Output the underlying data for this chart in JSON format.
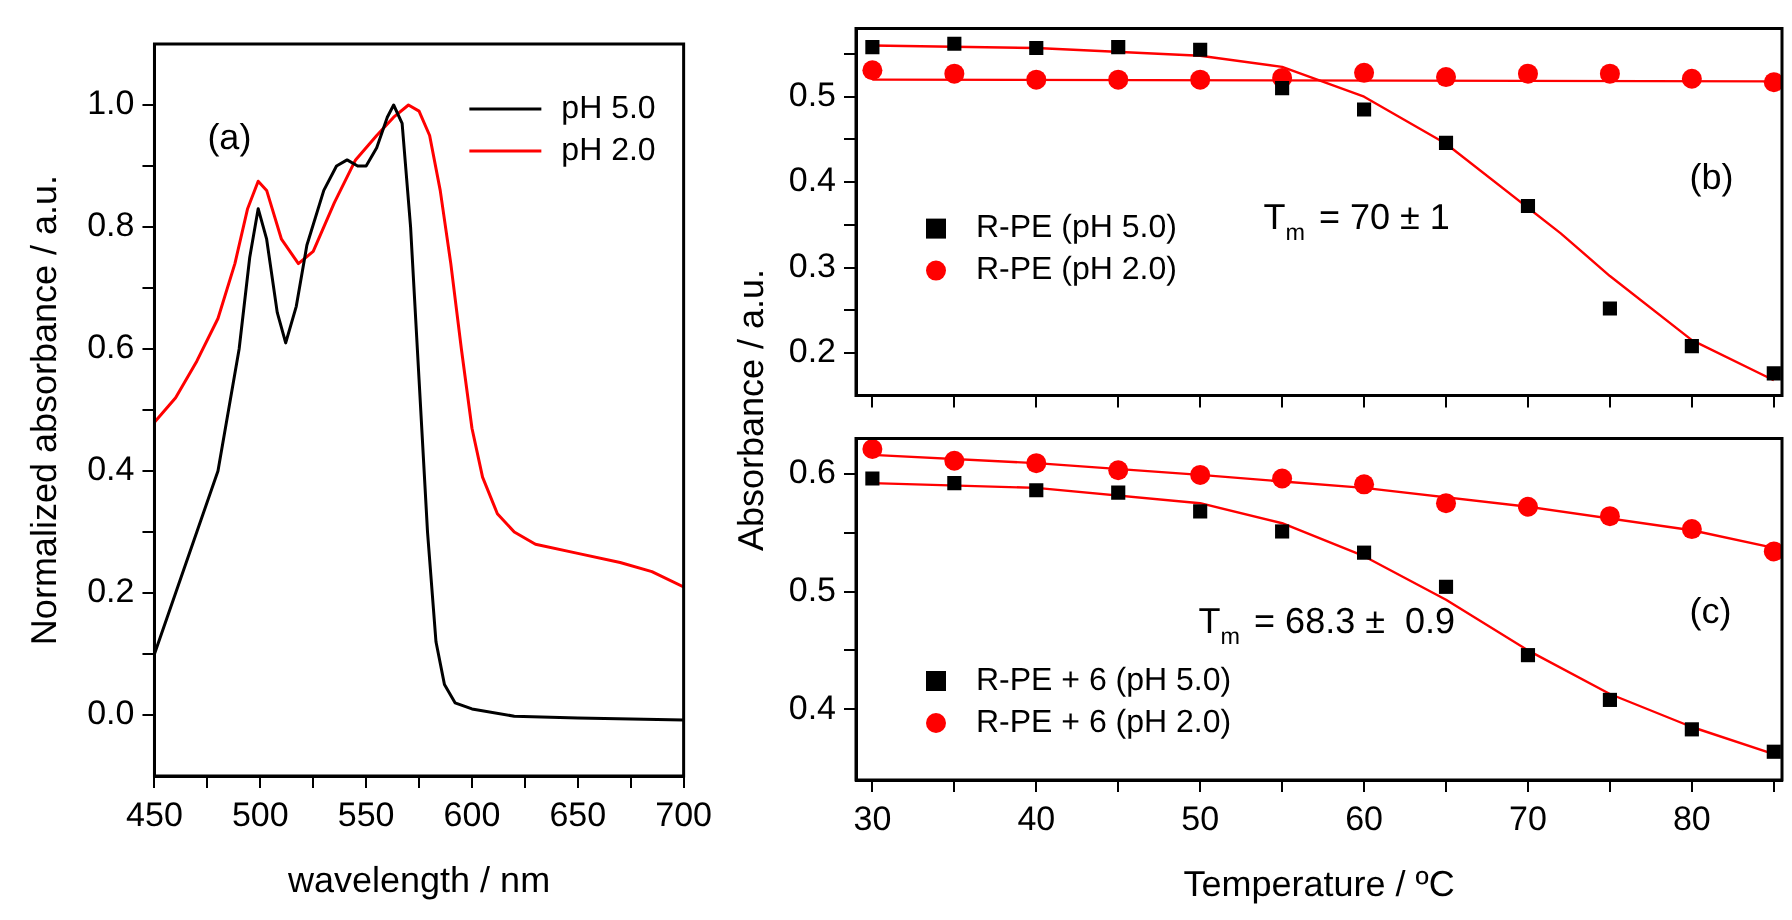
{
  "chart_data": [
    {
      "type": "line",
      "xlabel": "wavelength / nm",
      "ylabel": "Normalized absorbance / a.u.",
      "annotations": [
        "(a)"
      ],
      "legend": "top right",
      "xlim": [
        450,
        700
      ],
      "ylim": [
        -0.1,
        1.1
      ],
      "xticks": [
        450,
        {
          "value": 475,
          "label": null
        },
        500,
        {
          "value": 525,
          "label": null
        },
        550,
        {
          "value": 575,
          "label": null
        },
        600,
        {
          "value": 625,
          "label": null
        },
        650,
        {
          "value": 675,
          "label": null
        },
        700
      ],
      "yticks": [
        {
          "value": 0,
          "label": "0.0"
        },
        {
          "value": 0.1,
          "label": null
        },
        0.2,
        {
          "value": 0.3,
          "label": null
        },
        0.4,
        {
          "value": 0.5,
          "label": null
        },
        0.6,
        {
          "value": 0.7,
          "label": null
        },
        0.8,
        {
          "value": 0.9,
          "label": null
        },
        {
          "value": 1,
          "label": "1.0"
        }
      ],
      "series": [
        {
          "name": "pH 5.0",
          "color": "#000000",
          "x": [
            450,
            460,
            470,
            480,
            490,
            495,
            499,
            503,
            508,
            512,
            517,
            522,
            530,
            536,
            541,
            546,
            550,
            555,
            560,
            563,
            567,
            571,
            575,
            579,
            583,
            587,
            592,
            600,
            620,
            650,
            700
          ],
          "values": [
            0.1,
            0.2,
            0.3,
            0.4,
            0.6,
            0.75,
            0.83,
            0.78,
            0.66,
            0.61,
            0.67,
            0.77,
            0.86,
            0.9,
            0.91,
            0.9,
            0.9,
            0.93,
            0.98,
            1.0,
            0.97,
            0.8,
            0.55,
            0.3,
            0.12,
            0.05,
            0.02,
            0.01,
            -0.002,
            -0.005,
            -0.008
          ]
        },
        {
          "name": "pH 2.0",
          "color": "#ff0000",
          "x": [
            450,
            460,
            470,
            480,
            488,
            494,
            499,
            503,
            510,
            518,
            525,
            535,
            545,
            555,
            563,
            570,
            575,
            580,
            585,
            590,
            595,
            600,
            605,
            612,
            620,
            630,
            650,
            670,
            685,
            700
          ],
          "values": [
            0.48,
            0.52,
            0.58,
            0.65,
            0.74,
            0.83,
            0.875,
            0.86,
            0.78,
            0.74,
            0.76,
            0.84,
            0.91,
            0.95,
            0.98,
            1.0,
            0.99,
            0.95,
            0.86,
            0.74,
            0.6,
            0.47,
            0.39,
            0.33,
            0.3,
            0.28,
            0.265,
            0.25,
            0.235,
            0.21
          ]
        }
      ]
    },
    {
      "type": "scatter",
      "ylabel": "Absorbance / a.u.",
      "annotations": [
        "T$_{m}$ = 70 ± 1",
        "(b)"
      ],
      "legend": "bottom left",
      "tick_labels": "y",
      "xlim": [
        29,
        85.5
      ],
      "ylim": [
        0.15,
        0.58
      ],
      "xticks": [
        30,
        {
          "value": 35,
          "label": null
        },
        40,
        {
          "value": 45,
          "label": null
        },
        50,
        {
          "value": 55,
          "label": null
        },
        60,
        {
          "value": 65,
          "label": null
        },
        70,
        {
          "value": 75,
          "label": null
        },
        80,
        {
          "value": 85,
          "label": null
        }
      ],
      "yticks": [
        0.2,
        {
          "value": 0.25,
          "label": null
        },
        0.3,
        {
          "value": 0.35,
          "label": null
        },
        0.4,
        {
          "value": 0.45,
          "label": null
        },
        0.5,
        {
          "value": 0.55,
          "label": null
        }
      ],
      "series": [
        {
          "name": "R-PE (pH 5.0)",
          "color": "#000000",
          "marker": "square",
          "x": [
            30,
            35,
            40,
            45,
            50,
            55,
            60,
            65,
            70,
            75,
            80,
            85
          ],
          "values": [
            0.558,
            0.562,
            0.557,
            0.558,
            0.555,
            0.51,
            0.485,
            0.446,
            0.372,
            0.252,
            0.208,
            0.176
          ]
        },
        {
          "name": "R-PE (pH 2.0)",
          "color": "#ff0000",
          "marker": "circle",
          "x": [
            30,
            35,
            40,
            45,
            50,
            55,
            60,
            65,
            70,
            75,
            80,
            85
          ],
          "values": [
            0.531,
            0.527,
            0.52,
            0.52,
            0.52,
            0.522,
            0.528,
            0.523,
            0.527,
            0.527,
            0.521,
            0.517
          ]
        },
        {
          "type": "line",
          "color": "#ff0000",
          "x": [
            30,
            40,
            50,
            55,
            60,
            65,
            70,
            72,
            75,
            80,
            85
          ],
          "values": [
            0.56,
            0.557,
            0.548,
            0.535,
            0.5,
            0.445,
            0.37,
            0.34,
            0.29,
            0.215,
            0.168
          ]
        },
        {
          "type": "line",
          "color": "#ff0000",
          "x": [
            30,
            85
          ],
          "values": [
            0.52,
            0.518
          ]
        }
      ]
    },
    {
      "type": "scatter",
      "xlabel": "Temperature / ºC",
      "annotations": [
        "T$_{m}$ = 68.3 ±  0.9",
        "(c)"
      ],
      "legend": "bottom left",
      "xlim": [
        29,
        85.5
      ],
      "ylim": [
        0.34,
        0.63
      ],
      "xticks": [
        30,
        {
          "value": 35,
          "label": null
        },
        40,
        {
          "value": 45,
          "label": null
        },
        50,
        {
          "value": 55,
          "label": null
        },
        60,
        {
          "value": 65,
          "label": null
        },
        70,
        {
          "value": 75,
          "label": null
        },
        80,
        {
          "value": 85,
          "label": null
        }
      ],
      "yticks": [
        0.4,
        {
          "value": 0.45,
          "label": null
        },
        0.5,
        {
          "value": 0.55,
          "label": null
        },
        0.6
      ],
      "series": [
        {
          "name": "R-PE + 6 (pH 5.0)",
          "color": "#000000",
          "marker": "square",
          "x": [
            30,
            35,
            40,
            45,
            50,
            55,
            60,
            65,
            70,
            75,
            80,
            85
          ],
          "values": [
            0.596,
            0.592,
            0.586,
            0.584,
            0.568,
            0.551,
            0.533,
            0.504,
            0.446,
            0.408,
            0.383,
            0.364
          ]
        },
        {
          "name": "R-PE + 6 (pH 2.0)",
          "color": "#ff0000",
          "marker": "circle",
          "x": [
            30,
            35,
            40,
            45,
            50,
            55,
            60,
            65,
            70,
            75,
            80,
            85
          ],
          "values": [
            0.621,
            0.611,
            0.609,
            0.603,
            0.599,
            0.596,
            0.591,
            0.575,
            0.572,
            0.564,
            0.553,
            0.534
          ]
        },
        {
          "type": "line",
          "color": "#ff0000",
          "x": [
            30,
            40,
            50,
            55,
            60,
            65,
            70,
            75,
            80,
            85
          ],
          "values": [
            0.592,
            0.588,
            0.575,
            0.558,
            0.53,
            0.493,
            0.45,
            0.413,
            0.385,
            0.362
          ]
        },
        {
          "type": "line",
          "color": "#ff0000",
          "x": [
            30,
            40,
            50,
            60,
            70,
            80,
            85
          ],
          "values": [
            0.616,
            0.609,
            0.599,
            0.588,
            0.572,
            0.552,
            0.537
          ]
        }
      ]
    }
  ]
}
